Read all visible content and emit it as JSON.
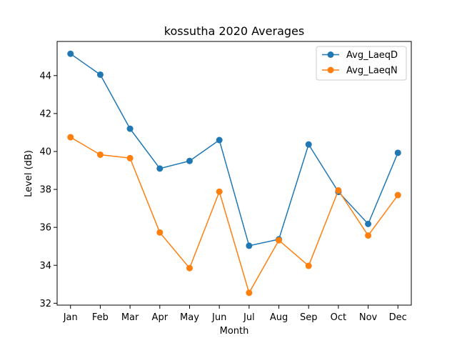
{
  "chart_data": {
    "type": "line",
    "title": "kossutha 2020 Averages",
    "xlabel": "Month",
    "ylabel": "Level (dB)",
    "categories": [
      "Jan",
      "Feb",
      "Mar",
      "Apr",
      "May",
      "Jun",
      "Jul",
      "Aug",
      "Sep",
      "Oct",
      "Nov",
      "Dec"
    ],
    "series": [
      {
        "name": "Avg_LaeqD",
        "color": "#1f77b4",
        "values": [
          45.15,
          44.05,
          41.2,
          39.1,
          39.5,
          40.6,
          35.03,
          35.37,
          40.37,
          37.87,
          36.18,
          39.93
        ]
      },
      {
        "name": "Avg_LaeqN",
        "color": "#ff7f0e",
        "values": [
          40.75,
          39.83,
          39.65,
          35.73,
          33.85,
          37.88,
          32.55,
          35.32,
          33.97,
          37.95,
          35.57,
          37.7
        ]
      }
    ],
    "ylim": [
      31.9,
      45.8
    ],
    "yticks": [
      32,
      34,
      36,
      38,
      40,
      42,
      44
    ],
    "grid": false,
    "legend_position": "top-right",
    "marker": "circle"
  }
}
